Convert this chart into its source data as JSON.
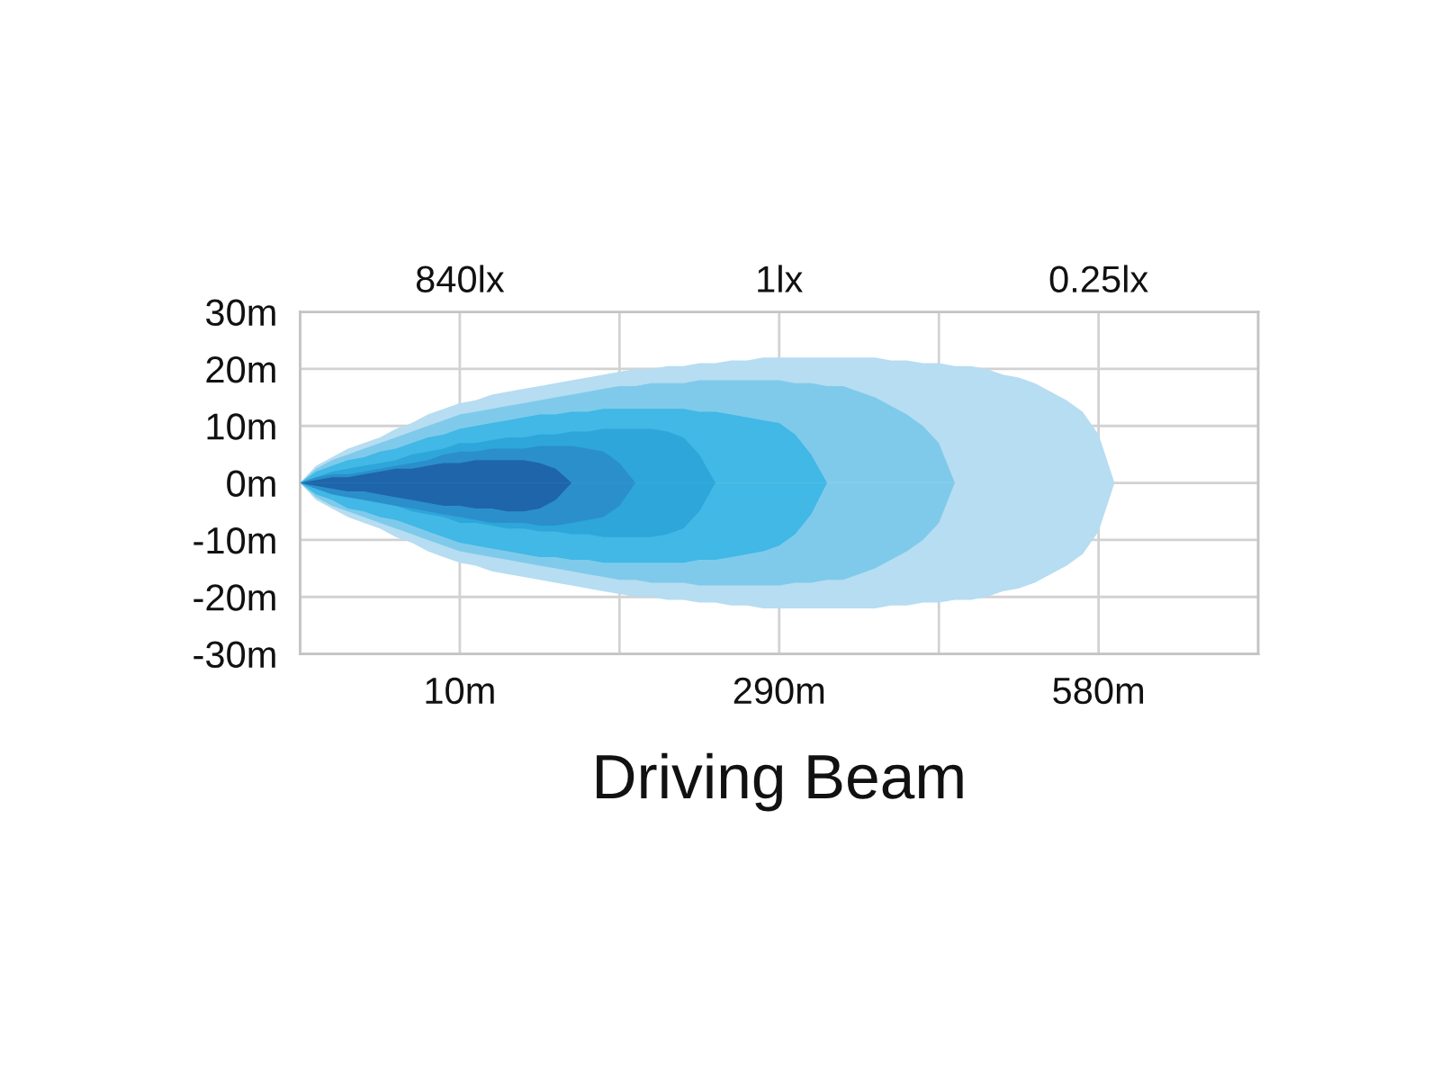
{
  "chart_data": {
    "type": "area",
    "title": "Driving Beam",
    "categories": [
      null,
      null,
      null,
      null,
      null,
      null,
      null,
      null,
      null,
      null,
      "10m",
      null,
      null,
      null,
      null,
      null,
      null,
      null,
      null,
      null,
      null,
      null,
      null,
      null,
      null,
      null,
      null,
      null,
      null,
      null,
      "290m",
      null,
      null,
      null,
      null,
      null,
      null,
      null,
      null,
      null,
      null,
      null,
      null,
      null,
      null,
      null,
      null,
      null,
      null,
      null,
      "580m",
      null,
      null,
      null,
      null,
      null,
      null,
      null,
      null,
      null,
      null
    ],
    "annotations": [
      "840lx",
      "1lx",
      "0.25lx"
    ],
    "ylim": [
      -30,
      30
    ],
    "yticks": [
      {
        "value": -30,
        "label": "-30m"
      },
      {
        "value": -20,
        "label": "-20m"
      },
      {
        "value": -10,
        "label": "-10m"
      },
      {
        "value": 0,
        "label": "0m"
      },
      {
        "value": 10,
        "label": "10m"
      },
      {
        "value": 20,
        "label": "20m"
      },
      {
        "value": 30,
        "label": "30m"
      }
    ],
    "grid": true,
    "series": [
      {
        "color": "#b6ddf1",
        "values": [
          0,
          3,
          4.5,
          6,
          7,
          8,
          9.5,
          10.5,
          12,
          13,
          14,
          14.5,
          15.5,
          16,
          16.5,
          17,
          17.5,
          18,
          18.5,
          19,
          19.5,
          20,
          20,
          20.5,
          20.5,
          21,
          21,
          21.5,
          21.5,
          22,
          22,
          22,
          22,
          22,
          22,
          22,
          22,
          21.5,
          21.5,
          21,
          21,
          20.5,
          20.5,
          20,
          19,
          18.5,
          17.5,
          16,
          14.5,
          12.5,
          8.5,
          0,
          null,
          null,
          null,
          null,
          null,
          null,
          null,
          null,
          null
        ]
      },
      {
        "color": "#b6ddf1",
        "values": [
          0,
          -3,
          -4.5,
          -6,
          -7,
          -8,
          -9.5,
          -10.5,
          -12,
          -13,
          -14,
          -14.5,
          -15.5,
          -16,
          -16.5,
          -17,
          -17.5,
          -18,
          -18.5,
          -19,
          -19.5,
          -20,
          -20,
          -20.5,
          -20.5,
          -21,
          -21,
          -21.5,
          -21.5,
          -22,
          -22,
          -22,
          -22,
          -22,
          -22,
          -22,
          -22,
          -21.5,
          -21.5,
          -21,
          -21,
          -20.5,
          -20.5,
          -20,
          -19,
          -18.5,
          -17.5,
          -16,
          -14.5,
          -12.5,
          -8.5,
          0,
          null,
          null,
          null,
          null,
          null,
          null,
          null,
          null,
          null
        ]
      },
      {
        "color": "#7fcaeb",
        "values": [
          0,
          2.5,
          4,
          5,
          6,
          7,
          8,
          9,
          10,
          11,
          12,
          12.5,
          13,
          13.5,
          14,
          14.5,
          15,
          15.5,
          16,
          16.5,
          17,
          17,
          17.5,
          17.5,
          17.5,
          18,
          18,
          18,
          18,
          18,
          18,
          17.5,
          17.5,
          17,
          17,
          16,
          15,
          13.5,
          12,
          10,
          7,
          0,
          null,
          null,
          null,
          null,
          null,
          null,
          null,
          null,
          null,
          null,
          null,
          null,
          null,
          null,
          null,
          null,
          null,
          null,
          null
        ]
      },
      {
        "color": "#7fcaeb",
        "values": [
          0,
          -2.5,
          -4,
          -5,
          -6,
          -7,
          -8,
          -9,
          -10,
          -11,
          -12,
          -12.5,
          -13,
          -13.5,
          -14,
          -14.5,
          -15,
          -15.5,
          -16,
          -16.5,
          -17,
          -17,
          -17.5,
          -17.5,
          -17.5,
          -18,
          -18,
          -18,
          -18,
          -18,
          -18,
          -17.5,
          -17.5,
          -17,
          -17,
          -16,
          -15,
          -13.5,
          -12,
          -10,
          -7,
          0,
          null,
          null,
          null,
          null,
          null,
          null,
          null,
          null,
          null,
          null,
          null,
          null,
          null,
          null,
          null,
          null,
          null,
          null,
          null
        ]
      },
      {
        "color": "#41b8e5",
        "values": [
          0,
          2,
          3,
          4,
          4.5,
          5.5,
          6,
          7,
          8,
          8.5,
          9.5,
          10,
          10.5,
          11,
          11.5,
          12,
          12,
          12.5,
          12.5,
          13,
          13,
          13,
          13,
          13,
          13,
          12.5,
          12.5,
          12,
          11.5,
          11,
          10.5,
          8.5,
          5,
          0,
          null,
          null,
          null,
          null,
          null,
          null,
          null,
          null,
          null,
          null,
          null,
          null,
          null,
          null,
          null,
          null,
          null,
          null,
          null,
          null,
          null,
          null,
          null,
          null,
          null,
          null,
          null
        ]
      },
      {
        "color": "#41b8e5",
        "values": [
          0,
          -2,
          -3,
          -4.5,
          -5,
          -6,
          -6.5,
          -7.5,
          -8.5,
          -9.5,
          -10.5,
          -11,
          -11.5,
          -12,
          -12.5,
          -13,
          -13,
          -13.5,
          -13.5,
          -14,
          -14,
          -14,
          -14,
          -14,
          -14,
          -13.5,
          -13.5,
          -13,
          -12.5,
          -12,
          -11,
          -9,
          -5.5,
          0,
          null,
          null,
          null,
          null,
          null,
          null,
          null,
          null,
          null,
          null,
          null,
          null,
          null,
          null,
          null,
          null,
          null,
          null,
          null,
          null,
          null,
          null,
          null,
          null,
          null,
          null,
          null
        ]
      },
      {
        "color": "#2ea6da",
        "values": [
          0,
          1,
          2,
          2.5,
          3,
          3.5,
          4,
          5,
          5.5,
          6,
          7,
          7,
          7.5,
          8,
          8,
          8.5,
          8.5,
          9,
          9,
          9.5,
          9.5,
          9.5,
          9.5,
          9,
          8,
          5,
          0,
          null,
          null,
          null,
          null,
          null,
          null,
          null,
          null,
          null,
          null,
          null,
          null,
          null,
          null,
          null,
          null,
          null,
          null,
          null,
          null,
          null,
          null,
          null,
          null,
          null,
          null,
          null,
          null,
          null,
          null,
          null,
          null,
          null,
          null
        ]
      },
      {
        "color": "#2ea6da",
        "values": [
          0,
          -1,
          -2,
          -2.5,
          -3,
          -3.5,
          -4,
          -5,
          -5.5,
          -6,
          -7,
          -7,
          -7.5,
          -8,
          -8,
          -8.5,
          -8.5,
          -9,
          -9,
          -9.5,
          -9.5,
          -9.5,
          -9.5,
          -9,
          -8,
          -5,
          0,
          null,
          null,
          null,
          null,
          null,
          null,
          null,
          null,
          null,
          null,
          null,
          null,
          null,
          null,
          null,
          null,
          null,
          null,
          null,
          null,
          null,
          null,
          null,
          null,
          null,
          null,
          null,
          null,
          null,
          null,
          null,
          null,
          null,
          null
        ]
      },
      {
        "color": "#2b8fcb",
        "values": [
          0,
          1,
          1.5,
          1.5,
          2,
          2.5,
          3,
          3.5,
          4,
          5,
          5.5,
          5.5,
          6,
          6,
          6,
          6.5,
          6.5,
          6.5,
          6,
          5.5,
          3.5,
          0,
          null,
          null,
          null,
          null,
          null,
          null,
          null,
          null,
          null,
          null,
          null,
          null,
          null,
          null,
          null,
          null,
          null,
          null,
          null,
          null,
          null,
          null,
          null,
          null,
          null,
          null,
          null,
          null,
          null,
          null,
          null,
          null,
          null,
          null,
          null,
          null,
          null,
          null,
          null
        ]
      },
      {
        "color": "#2b8fcb",
        "values": [
          0,
          -1,
          -2,
          -2.5,
          -3,
          -3.5,
          -4,
          -4.5,
          -5,
          -5.5,
          -6,
          -6.5,
          -7,
          -7,
          -7,
          -7.5,
          -7.5,
          -7,
          -6.5,
          -6,
          -4,
          0,
          null,
          null,
          null,
          null,
          null,
          null,
          null,
          null,
          null,
          null,
          null,
          null,
          null,
          null,
          null,
          null,
          null,
          null,
          null,
          null,
          null,
          null,
          null,
          null,
          null,
          null,
          null,
          null,
          null,
          null,
          null,
          null,
          null,
          null,
          null,
          null,
          null,
          null,
          null
        ]
      },
      {
        "color": "#1f65a9",
        "values": [
          0,
          0.5,
          1,
          1,
          1.5,
          2,
          2.5,
          2.5,
          3,
          3.5,
          3.5,
          4,
          4,
          4,
          4,
          3.5,
          2.5,
          0,
          null,
          null,
          null,
          null,
          null,
          null,
          null,
          null,
          null,
          null,
          null,
          null,
          null,
          null,
          null,
          null,
          null,
          null,
          null,
          null,
          null,
          null,
          null,
          null,
          null,
          null,
          null,
          null,
          null,
          null,
          null,
          null,
          null,
          null,
          null,
          null,
          null,
          null,
          null,
          null,
          null,
          null,
          null
        ]
      },
      {
        "color": "#1f65a9",
        "values": [
          0,
          -0.5,
          -1,
          -1.5,
          -1.5,
          -2,
          -2.5,
          -3,
          -3.5,
          -4,
          -4,
          -4.5,
          -4.5,
          -5,
          -5,
          -4.5,
          -3,
          0,
          null,
          null,
          null,
          null,
          null,
          null,
          null,
          null,
          null,
          null,
          null,
          null,
          null,
          null,
          null,
          null,
          null,
          null,
          null,
          null,
          null,
          null,
          null,
          null,
          null,
          null,
          null,
          null,
          null,
          null,
          null,
          null,
          null,
          null,
          null,
          null,
          null,
          null,
          null,
          null,
          null,
          null,
          null
        ]
      }
    ]
  }
}
